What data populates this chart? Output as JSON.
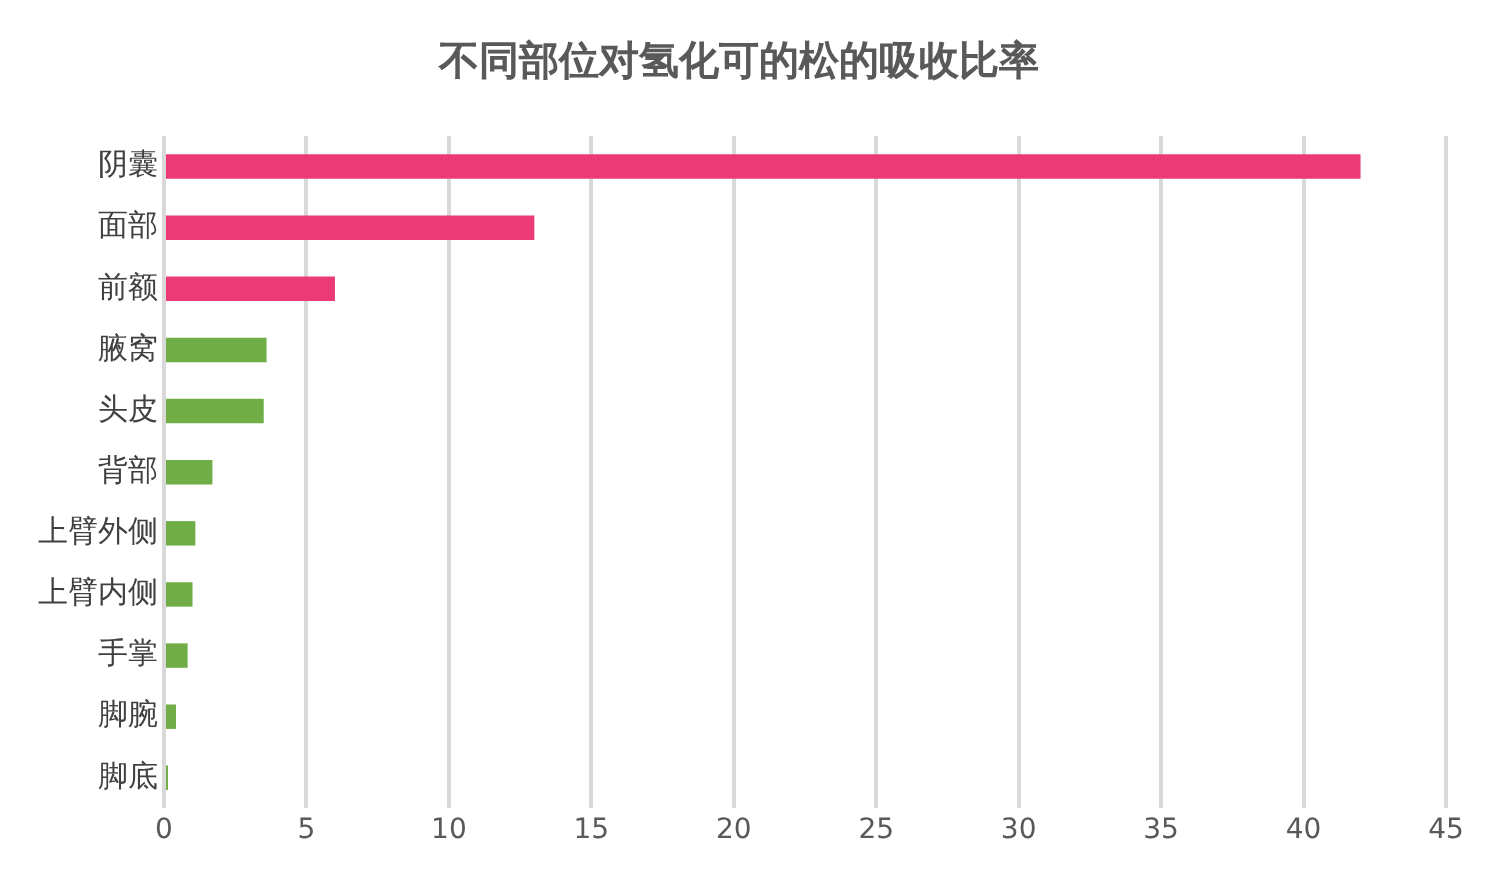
{
  "chart_data": {
    "type": "bar",
    "orientation": "horizontal",
    "title": "不同部位对氢化可的松的吸收比率",
    "categories": [
      "阴囊",
      "面部",
      "前额",
      "腋窝",
      "头皮",
      "背部",
      "上臂外侧",
      "上臂内侧",
      "手掌",
      "脚腕",
      "脚底"
    ],
    "values": [
      42,
      13,
      6,
      3.6,
      3.5,
      1.7,
      1.1,
      1.0,
      0.83,
      0.42,
      0.14
    ],
    "colors": [
      "#ec3a77",
      "#ec3a77",
      "#ec3a77",
      "#70ad47",
      "#70ad47",
      "#70ad47",
      "#70ad47",
      "#70ad47",
      "#70ad47",
      "#70ad47",
      "#70ad47"
    ],
    "xlim": [
      0,
      45
    ],
    "xticks": [
      0,
      5,
      10,
      15,
      20,
      25,
      30,
      35,
      40,
      45
    ],
    "grid": "x",
    "legend": false
  }
}
